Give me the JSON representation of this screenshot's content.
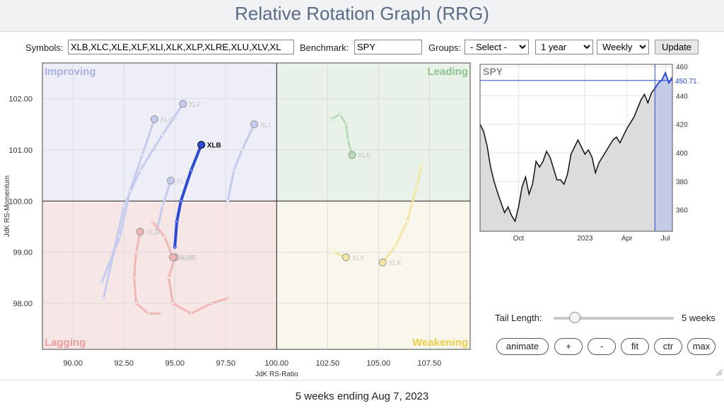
{
  "page": {
    "title": "Relative Rotation Graph (RRG)",
    "footer": "5 weeks ending Aug 7, 2023"
  },
  "controls": {
    "symbols_label": "Symbols:",
    "symbols_value": "XLB,XLC,XLE,XLF,XLI,XLK,XLP,XLRE,XLU,XLV,XL",
    "benchmark_label": "Benchmark:",
    "benchmark_value": "SPY",
    "groups_label": "Groups:",
    "groups_value": "- Select -",
    "period_value": "1 year",
    "frequency_value": "Weekly",
    "update_label": "Update"
  },
  "tail": {
    "label": "Tail Length:",
    "value_text": "5 weeks",
    "weeks": 5,
    "max_weeks": 52
  },
  "buttons": {
    "animate": "animate",
    "plus": "+",
    "minus": "-",
    "fit": "fit",
    "ctr": "ctr",
    "max": "max"
  },
  "colors": {
    "improving": "#eeeef8",
    "leading": "#e8f2e8",
    "lagging": "#f7e6e6",
    "weakening": "#f9f7ec",
    "highlight": "#2b4bd6",
    "blue_faded": "#c3cbef",
    "red_faded": "#f2b5b5",
    "green_faded": "#b7dcb7",
    "yellow_faded": "#f3e6a4"
  },
  "chart_data": [
    {
      "type": "scatter",
      "xlabel": "JdK RS-Ratio",
      "ylabel": "JdK RS-Momentum",
      "xlim": [
        88.5,
        109.5
      ],
      "ylim": [
        97.1,
        102.7
      ],
      "center": [
        100,
        100
      ],
      "x_ticks": [
        "90.00",
        "92.50",
        "95.00",
        "97.50",
        "100.00",
        "102.50",
        "105.00",
        "107.50"
      ],
      "y_ticks": [
        "98.00",
        "99.00",
        "100.00",
        "101.00",
        "102.00"
      ],
      "quadrants": {
        "improving": "Improving",
        "leading": "Leading",
        "lagging": "Lagging",
        "weakening": "Weakening"
      },
      "grid": true,
      "highlight": "XLB",
      "series": [
        {
          "name": "XLB",
          "color": "#2b4bd6",
          "points": [
            [
              95.0,
              99.1
            ],
            [
              95.1,
              99.6
            ],
            [
              95.3,
              100.0
            ],
            [
              95.8,
              100.6
            ],
            [
              96.3,
              101.1
            ]
          ]
        },
        {
          "name": "XLF",
          "color": "#c3cbef",
          "points": [
            [
              91.5,
              98.1
            ],
            [
              92.0,
              99.0
            ],
            [
              92.5,
              99.9
            ],
            [
              93.3,
              100.6
            ],
            [
              94.4,
              101.3
            ],
            [
              95.4,
              101.9
            ]
          ]
        },
        {
          "name": "XLC",
          "color": "#c3cbef",
          "points": [
            [
              91.4,
              98.4
            ],
            [
              92.3,
              99.3
            ],
            [
              92.8,
              100.2
            ],
            [
              93.4,
              100.9
            ],
            [
              94.0,
              101.6
            ]
          ]
        },
        {
          "name": "XLI",
          "color": "#c3cbef",
          "points": [
            [
              97.6,
              100.0
            ],
            [
              97.9,
              100.6
            ],
            [
              98.3,
              101.0
            ],
            [
              98.9,
              101.5
            ]
          ]
        },
        {
          "name": "XLV",
          "color": "#c3cbef",
          "points": [
            [
              94.1,
              99.4
            ],
            [
              94.4,
              99.9
            ],
            [
              94.8,
              100.4
            ]
          ]
        },
        {
          "name": "XLU",
          "color": "#f2b5b5",
          "points": [
            [
              94.3,
              97.8
            ],
            [
              93.7,
              97.8
            ],
            [
              93.1,
              98.0
            ],
            [
              93.0,
              98.5
            ],
            [
              93.1,
              99.0
            ],
            [
              93.3,
              99.4
            ]
          ]
        },
        {
          "name": "XLP",
          "color": "#f2b5b5",
          "points": [
            [
              97.6,
              98.1
            ],
            [
              96.8,
              98.0
            ],
            [
              95.8,
              97.8
            ],
            [
              94.9,
              98.0
            ],
            [
              94.7,
              98.5
            ],
            [
              95.0,
              98.9
            ]
          ]
        },
        {
          "name": "XLRE",
          "color": "#f2b5b5",
          "points": [
            [
              93.9,
              99.6
            ],
            [
              94.5,
              99.3
            ],
            [
              94.9,
              98.9
            ]
          ]
        },
        {
          "name": "XLE",
          "color": "#b7dcb7",
          "points": [
            [
              102.7,
              101.6
            ],
            [
              103.1,
              101.7
            ],
            [
              103.4,
              101.5
            ],
            [
              103.5,
              101.2
            ],
            [
              103.7,
              100.9
            ]
          ]
        },
        {
          "name": "XLK",
          "color": "#f3e6a4",
          "points": [
            [
              107.1,
              100.7
            ],
            [
              106.9,
              100.3
            ],
            [
              106.4,
              99.6
            ],
            [
              105.8,
              99.1
            ],
            [
              105.2,
              98.8
            ]
          ]
        },
        {
          "name": "XLY",
          "color": "#f3e6a4",
          "points": [
            [
              102.8,
              99.0
            ],
            [
              103.4,
              98.9
            ]
          ]
        }
      ],
      "labels_shown": [
        "XLB",
        "XLF",
        "XLC",
        "XLI",
        "XLV",
        "XLU",
        "XLP",
        "XLRE",
        "XLE",
        "XLK",
        "XLY"
      ]
    },
    {
      "type": "area",
      "title": "SPY",
      "ylim": [
        345,
        462
      ],
      "y_ticks": [
        "360",
        "380",
        "400",
        "420",
        "440",
        "460"
      ],
      "x_ticks": [
        "Oct",
        "2023",
        "Apr",
        "Jul"
      ],
      "current_value": "450.71",
      "values": [
        420,
        415,
        405,
        390,
        380,
        372,
        365,
        358,
        362,
        356,
        352,
        362,
        376,
        383,
        371,
        378,
        394,
        390,
        394,
        401,
        397,
        389,
        381,
        381,
        378,
        385,
        399,
        404,
        409,
        404,
        399,
        402,
        397,
        386,
        393,
        397,
        401,
        405,
        409,
        411,
        407,
        412,
        417,
        421,
        425,
        431,
        437,
        441,
        435,
        442,
        445,
        449,
        451,
        456,
        449,
        453
      ]
    }
  ]
}
